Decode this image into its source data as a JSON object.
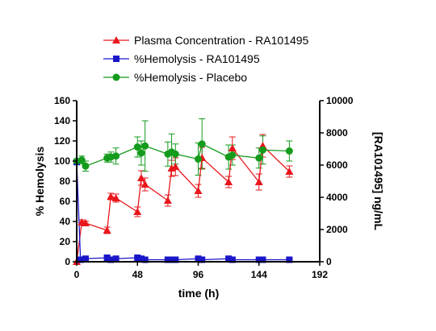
{
  "chart_data": {
    "type": "scatter",
    "title": "",
    "xlabel": "time (h)",
    "ylabel_left": "% Hemolysis",
    "ylabel_right": "[RA101495] ng/mL",
    "xlim": [
      0,
      192
    ],
    "x_ticks": [
      "0",
      "48",
      "96",
      "144",
      "192"
    ],
    "ylim_left": [
      0,
      160
    ],
    "y_ticks_left": [
      "0",
      "20",
      "40",
      "60",
      "80",
      "100",
      "120",
      "140",
      "160"
    ],
    "ylim_right": [
      0,
      10000
    ],
    "y_ticks_right": [
      "0",
      "2000",
      "4000",
      "6000",
      "8000",
      "10000"
    ],
    "legend_position": "top-center",
    "grid": false,
    "series": [
      {
        "name": "Plasma Concentration - RA101495",
        "axis": "right",
        "color": "#e8171c",
        "marker": "triangle",
        "x": [
          0,
          4,
          7,
          24,
          27,
          31,
          48,
          51,
          54,
          72,
          75,
          78,
          96,
          99,
          120,
          123,
          144,
          147,
          168
        ],
        "y": [
          0,
          2450,
          2400,
          1950,
          4050,
          3950,
          3100,
          5200,
          4800,
          3800,
          5800,
          5900,
          4400,
          6450,
          4950,
          7050,
          4950,
          7200,
          5600
        ],
        "error": [
          0,
          150,
          120,
          200,
          200,
          250,
          300,
          450,
          400,
          350,
          500,
          550,
          400,
          650,
          350,
          700,
          500,
          700,
          350
        ]
      },
      {
        "name": "%Hemolysis - RA101495",
        "axis": "left",
        "color": "#1a16c9",
        "marker": "square",
        "x": [
          0,
          3,
          7,
          24,
          27,
          31,
          48,
          51,
          54,
          72,
          75,
          78,
          96,
          99,
          120,
          123,
          144,
          147,
          168
        ],
        "y": [
          99,
          2,
          3,
          4,
          2,
          3,
          4,
          3,
          2,
          2,
          2,
          2,
          3,
          2,
          3,
          2,
          2,
          2,
          2
        ],
        "error": [
          2,
          1,
          1,
          2,
          1,
          1,
          1,
          1,
          1,
          1,
          1,
          1,
          1,
          1,
          1,
          1,
          1,
          1,
          1
        ]
      },
      {
        "name": "%Hemolysis - Placebo",
        "axis": "left",
        "color": "#139b1b",
        "marker": "circle",
        "x": [
          0,
          4,
          7,
          24,
          27,
          31,
          48,
          51,
          54,
          72,
          75,
          78,
          96,
          99,
          120,
          123,
          144,
          147,
          168
        ],
        "y": [
          100,
          101,
          95,
          103,
          104,
          105,
          114,
          108,
          115,
          107,
          109,
          107,
          102,
          117,
          104,
          106,
          103,
          111,
          110
        ],
        "error": [
          2,
          4,
          5,
          4,
          5,
          8,
          10,
          12,
          25,
          12,
          18,
          10,
          16,
          25,
          12,
          10,
          10,
          14,
          10
        ]
      }
    ]
  }
}
